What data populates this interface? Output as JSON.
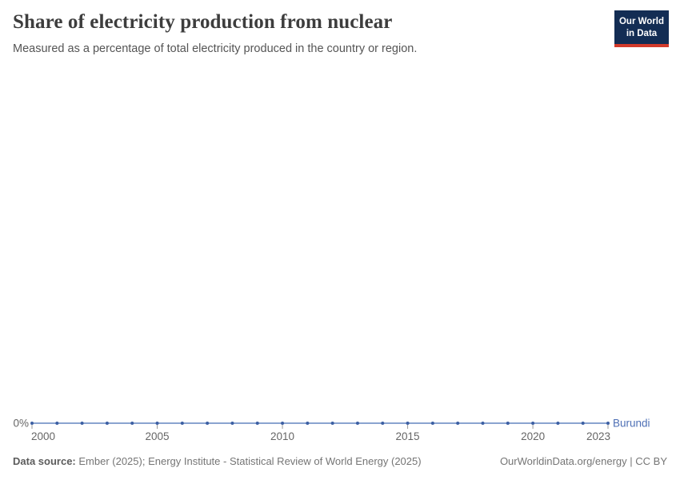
{
  "header": {
    "title": "Share of electricity production from nuclear",
    "subtitle": "Measured as a percentage of total electricity produced in the country or region."
  },
  "logo": {
    "line1": "Our World",
    "line2": "in Data",
    "bg_color": "#132d54",
    "bar_color": "#d23a2b"
  },
  "chart_data": {
    "type": "line",
    "title": "Share of electricity production from nuclear",
    "x": [
      2000,
      2001,
      2002,
      2003,
      2004,
      2005,
      2006,
      2007,
      2008,
      2009,
      2010,
      2011,
      2012,
      2013,
      2014,
      2015,
      2016,
      2017,
      2018,
      2019,
      2020,
      2021,
      2022,
      2023
    ],
    "series": [
      {
        "name": "Burundi",
        "values": [
          0,
          0,
          0,
          0,
          0,
          0,
          0,
          0,
          0,
          0,
          0,
          0,
          0,
          0,
          0,
          0,
          0,
          0,
          0,
          0,
          0,
          0,
          0,
          0
        ],
        "line_color": "#6386c1",
        "dot_color": "#3c5fa3",
        "label_color": "#4d6fb5"
      }
    ],
    "x_ticks": [
      "2000",
      "2005",
      "2010",
      "2015",
      "2020",
      "2023"
    ],
    "y_tick_label": "0%",
    "xlim": [
      2000,
      2023
    ],
    "grid": false,
    "legend": "end-of-line label",
    "axis_text_color": "#666666",
    "tick_mark_color": "#999999"
  },
  "footer": {
    "source_label": "Data source:",
    "source_text": " Ember (2025); Energy Institute - Statistical Review of World Energy (2025)",
    "rights": "OurWorldinData.org/energy | CC BY"
  }
}
